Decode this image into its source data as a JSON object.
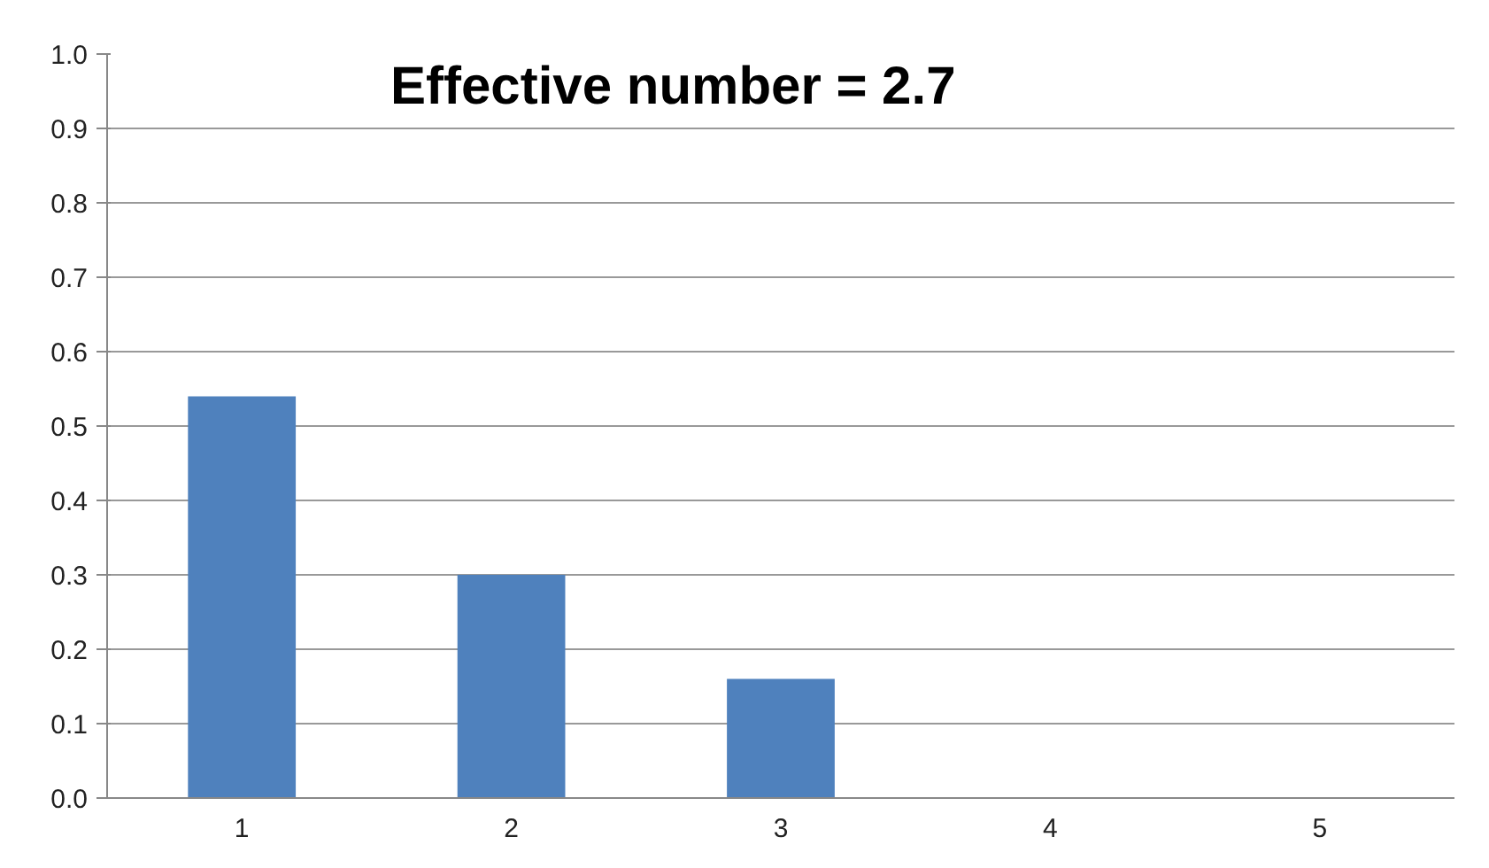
{
  "chart_data": {
    "type": "bar",
    "title": "Effective number = 2.7",
    "categories": [
      "1",
      "2",
      "3",
      "4",
      "5"
    ],
    "values": [
      0.54,
      0.3,
      0.16,
      0,
      0
    ],
    "color": "#4f81bd",
    "ylim": [
      0,
      1.0
    ],
    "yticks": [
      {
        "value": 0,
        "label": "0.0"
      },
      0.1,
      0.2,
      0.3,
      0.4,
      0.5,
      0.6,
      0.7,
      0.8,
      0.9,
      {
        "value": 1.0,
        "label": "1.0"
      }
    ],
    "grid": "y"
  }
}
